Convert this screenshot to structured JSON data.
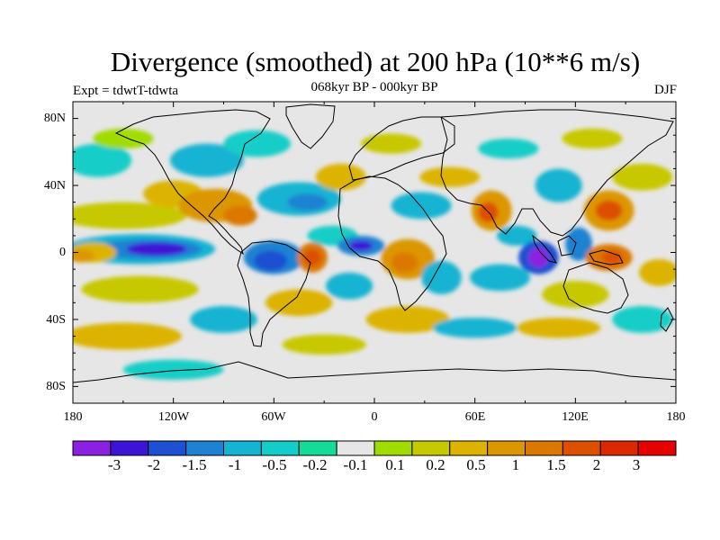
{
  "title": "Divergence (smoothed) at 200 hPa (10**6 m/s)",
  "subtitle": "068kyr BP - 000kyr BP",
  "experiment": "Expt = tdwtT-tdwta",
  "season": "DJF",
  "map": {
    "projection": "cylindrical-equidistant",
    "lon_range": [
      -180,
      180
    ],
    "lat_range": [
      -90,
      90
    ],
    "y_ticks": [
      {
        "label": "80N",
        "lat": 80
      },
      {
        "label": "40N",
        "lat": 40
      },
      {
        "label": "0",
        "lat": 0
      },
      {
        "label": "40S",
        "lat": -40
      },
      {
        "label": "80S",
        "lat": -80
      }
    ],
    "x_ticks": [
      {
        "label": "180",
        "lon": -180
      },
      {
        "label": "120W",
        "lon": -120
      },
      {
        "label": "60W",
        "lon": -60
      },
      {
        "label": "0",
        "lon": 0
      },
      {
        "label": "60E",
        "lon": 60
      },
      {
        "label": "120E",
        "lon": 120
      },
      {
        "label": "180",
        "lon": 180
      }
    ],
    "background_color": "#e6e6e6",
    "coastline_color": "#000000"
  },
  "colorbar": {
    "colors": [
      "#8c20e0",
      "#3c14d6",
      "#1e50d2",
      "#1e82d2",
      "#14b4d2",
      "#14cdc8",
      "#14dc96",
      "#e6e6e6",
      "#a0dc00",
      "#c8c800",
      "#dcb400",
      "#dc9600",
      "#dc7800",
      "#dc5000",
      "#dc2800",
      "#e60000"
    ],
    "labels": [
      "-3",
      "-2",
      "-1.5",
      "-1",
      "-0.5",
      "-0.2",
      "-0.1",
      "0.1",
      "0.2",
      "0.5",
      "1",
      "1.5",
      "2",
      "3"
    ],
    "levels": [
      -3,
      -2,
      -1.5,
      -1,
      -0.5,
      -0.2,
      -0.1,
      0.1,
      0.2,
      0.5,
      1,
      1.5,
      2,
      3
    ]
  },
  "field_features": [
    {
      "region": "central-east tropical Pacific",
      "lon": -140,
      "lat": 3,
      "value": -2.5
    },
    {
      "region": "western tropical Pacific",
      "lon": -165,
      "lat": 0,
      "value": 1.2
    },
    {
      "region": "Amazon",
      "lon": -60,
      "lat": -3,
      "value": -1.5
    },
    {
      "region": "NE Brazil coast",
      "lon": -37,
      "lat": -3,
      "value": 2.5
    },
    {
      "region": "tropical Atlantic",
      "lon": -8,
      "lat": 4,
      "value": -2.5
    },
    {
      "region": "equatorial Africa",
      "lon": 20,
      "lat": -4,
      "value": 1.8
    },
    {
      "region": "Indian Ocean / Sumatra",
      "lon": 98,
      "lat": -3,
      "value": -3
    },
    {
      "region": "New Guinea",
      "lon": 140,
      "lat": -3,
      "value": 2.5
    },
    {
      "region": "Japan-East China Sea",
      "lon": 140,
      "lat": 25,
      "value": 2
    },
    {
      "region": "Arabian Sea",
      "lon": 70,
      "lat": 25,
      "value": 2
    },
    {
      "region": "Gulf of Mexico",
      "lon": -95,
      "lat": 28,
      "value": 1.5
    },
    {
      "region": "North Atlantic",
      "lon": -45,
      "lat": 30,
      "value": -1.2
    },
    {
      "region": "Southern Ocean",
      "lon": -150,
      "lat": -55,
      "value": 0.6
    }
  ]
}
